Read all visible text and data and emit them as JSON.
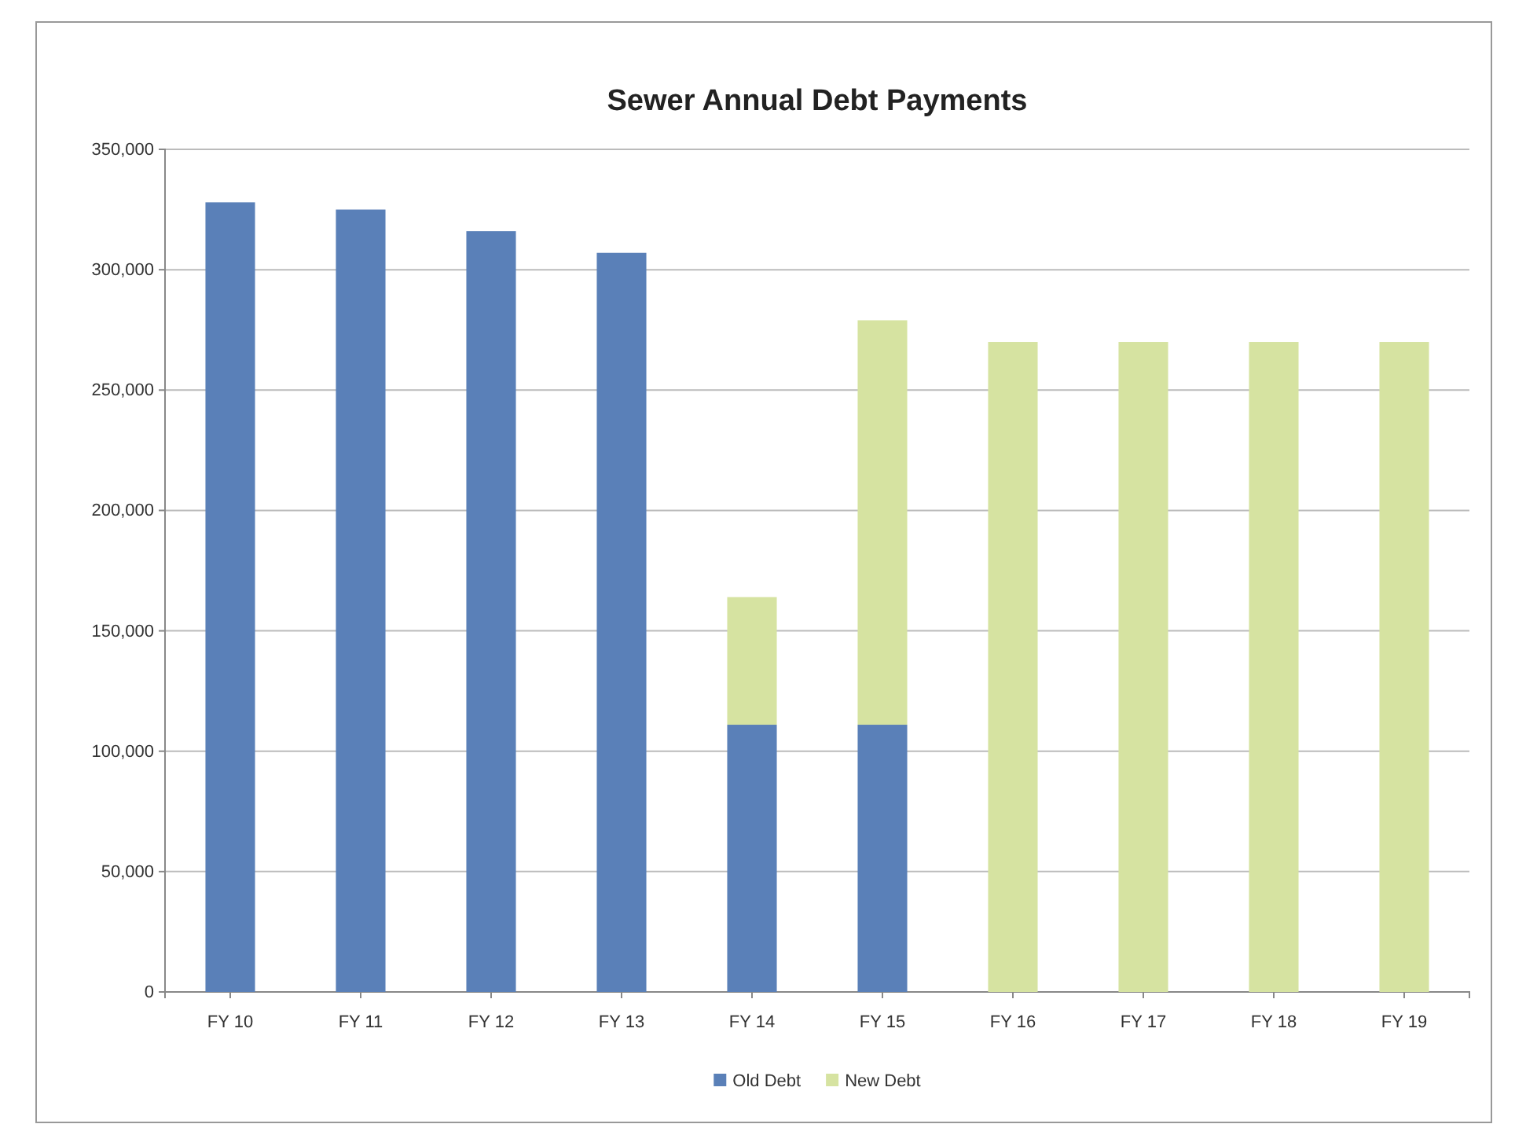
{
  "chart_data": {
    "type": "bar",
    "title": "Sewer Annual Debt Payments",
    "categories": [
      "FY 10",
      "FY 11",
      "FY 12",
      "FY 13",
      "FY 14",
      "FY 15",
      "FY 16",
      "FY 17",
      "FY 18",
      "FY 19"
    ],
    "series": [
      {
        "name": "Old Debt",
        "color": "#5a80b8",
        "values": [
          328000,
          325000,
          316000,
          307000,
          111000,
          111000,
          0,
          0,
          0,
          0
        ]
      },
      {
        "name": "New Debt",
        "color": "#d6e3a1",
        "values": [
          0,
          0,
          0,
          0,
          53000,
          168000,
          270000,
          270000,
          270000,
          270000
        ]
      }
    ],
    "stacked": true,
    "ylim": [
      0,
      350000
    ],
    "yticks": [
      {
        "value": 0,
        "label": "0"
      },
      {
        "value": 50000,
        "label": "50,000"
      },
      {
        "value": 100000,
        "label": "100,000"
      },
      {
        "value": 150000,
        "label": "150,000"
      },
      {
        "value": 200000,
        "label": "200,000"
      },
      {
        "value": 250000,
        "label": "250,000"
      },
      {
        "value": 300000,
        "label": "300,000"
      },
      {
        "value": 350000,
        "label": "350,000"
      }
    ],
    "grid": "y",
    "legend": "bottom"
  }
}
